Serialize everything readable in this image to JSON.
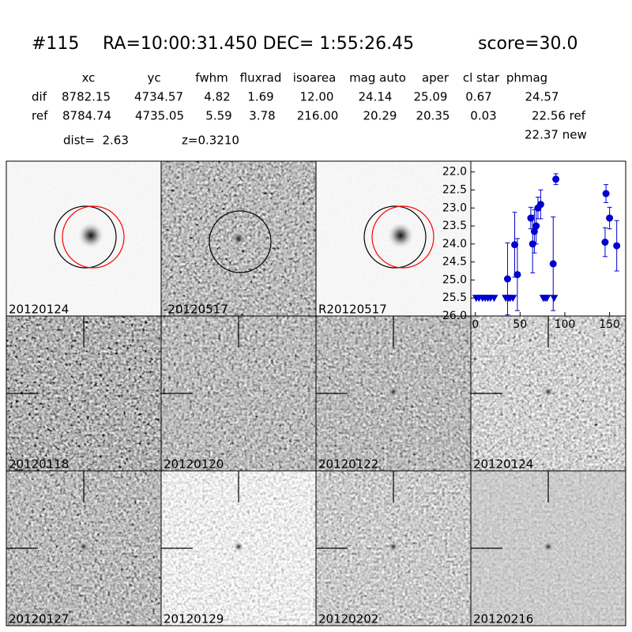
{
  "header": {
    "id": "#115",
    "coords": "RA=10:00:31.450 DEC= 1:55:26.45",
    "score": "score=30.0"
  },
  "table": {
    "columns": [
      "xc",
      "yc",
      "fwhm",
      "fluxrad",
      "isoarea",
      "mag auto",
      "aper",
      "cl star",
      "phmag"
    ],
    "rows": [
      [
        "dif",
        "8782.15",
        "4734.57",
        "4.82",
        "1.69",
        "12.00",
        "24.14",
        "25.09",
        "0.67",
        "24.57"
      ],
      [
        "ref",
        "8784.74",
        "4735.05",
        "5.59",
        "3.78",
        "216.00",
        "20.29",
        "20.35",
        "0.03",
        "22.56 ref"
      ]
    ],
    "dist": "dist=  2.63",
    "z": "z=0.3210",
    "new": "22.37 new"
  },
  "panels": [
    {
      "label": "20120124"
    },
    {
      "label": "-20120517"
    },
    {
      "label": "R20120517"
    },
    {
      "label": "20120118"
    },
    {
      "label": "20120120"
    },
    {
      "label": "20120122"
    },
    {
      "label": "20120124",
      "color": "#ff0000"
    },
    {
      "label": "20120127"
    },
    {
      "label": "20120129"
    },
    {
      "label": "20120202"
    },
    {
      "label": "20120216"
    }
  ],
  "chart_data": {
    "type": "errorbar",
    "xlim": [
      -5,
      168
    ],
    "ylim": [
      26.0,
      21.7
    ],
    "xticks": [
      0,
      50,
      100,
      150
    ],
    "yticks": [
      {
        "value": 22.0,
        "label": "22.0"
      },
      {
        "value": 22.5,
        "label": "22.5"
      },
      {
        "value": 23.0,
        "label": "23.0"
      },
      {
        "value": 23.5,
        "label": "23.5"
      },
      {
        "value": 24.0,
        "label": "24.0"
      },
      {
        "value": 24.5,
        "label": "24.5"
      },
      {
        "value": 25.0,
        "label": "25.0"
      },
      {
        "value": 25.5,
        "label": "25.5"
      },
      {
        "value": 26.0,
        "label": "26.0"
      }
    ],
    "series": [
      {
        "color": "#0000cc",
        "marker": "circle",
        "x": [
          36,
          44,
          47,
          62,
          64,
          66,
          68,
          70,
          73,
          87,
          90,
          145,
          146,
          150,
          158
        ],
        "values": [
          24.97,
          24.02,
          24.85,
          23.28,
          24.0,
          23.65,
          23.5,
          23.0,
          22.9,
          24.55,
          22.2,
          23.95,
          22.6,
          23.28,
          24.05
        ],
        "errors": [
          1.0,
          0.9,
          1.0,
          0.3,
          0.8,
          0.6,
          0.5,
          0.3,
          0.4,
          1.3,
          0.15,
          0.4,
          0.25,
          0.3,
          0.7
        ]
      },
      {
        "color": "#0000cc",
        "marker": "triangle-down",
        "x": [
          1,
          4,
          8,
          11,
          14,
          17,
          21,
          34,
          37,
          39,
          42,
          76,
          78,
          80,
          88
        ],
        "values": [
          25.5,
          25.5,
          25.5,
          25.5,
          25.5,
          25.5,
          25.5,
          25.5,
          25.5,
          25.5,
          25.5,
          25.5,
          25.5,
          25.5,
          25.5
        ]
      }
    ]
  }
}
